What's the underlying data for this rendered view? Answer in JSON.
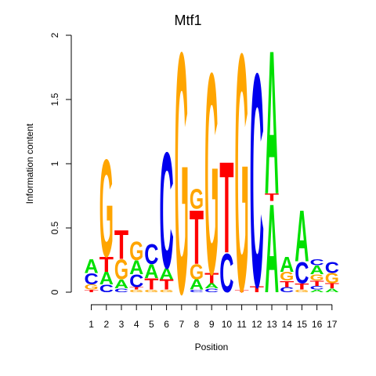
{
  "chart_data": {
    "type": "sequence-logo",
    "title": "Mtf1",
    "xlabel": "Position",
    "ylabel": "Information content",
    "ylim": [
      0,
      2
    ],
    "yticks": [
      "0",
      "0.5",
      "1",
      "1.5",
      "2"
    ],
    "positions": [
      "1",
      "2",
      "3",
      "4",
      "5",
      "6",
      "7",
      "8",
      "9",
      "10",
      "11",
      "12",
      "13",
      "14",
      "15",
      "16",
      "17"
    ],
    "colors": {
      "A": "#00e000",
      "C": "#0000ee",
      "G": "#ffa500",
      "T": "#ff0000"
    },
    "stacks": [
      [
        [
          "T",
          0.02
        ],
        [
          "G",
          0.04
        ],
        [
          "C",
          0.09
        ],
        [
          "A",
          0.11
        ]
      ],
      [
        [
          "C",
          0.06
        ],
        [
          "A",
          0.1
        ],
        [
          "T",
          0.12
        ],
        [
          "G",
          0.78
        ]
      ],
      [
        [
          "C",
          0.03
        ],
        [
          "A",
          0.07
        ],
        [
          "G",
          0.16
        ],
        [
          "T",
          0.23
        ]
      ],
      [
        [
          "G",
          0.02
        ],
        [
          "T",
          0.02
        ],
        [
          "C",
          0.1
        ],
        [
          "A",
          0.11
        ],
        [
          "G",
          0.15
        ]
      ],
      [
        [
          "G",
          0.02
        ],
        [
          "T",
          0.09
        ],
        [
          "A",
          0.11
        ],
        [
          "C",
          0.16
        ]
      ],
      [
        [
          "G",
          0.02
        ],
        [
          "T",
          0.08
        ],
        [
          "A",
          0.09
        ],
        [
          "C",
          0.93
        ]
      ],
      [
        [
          "G",
          1.93
        ]
      ],
      [
        [
          "C",
          0.02
        ],
        [
          "A",
          0.08
        ],
        [
          "G",
          0.12
        ],
        [
          "T",
          0.43
        ],
        [
          "G",
          0.16
        ]
      ],
      [
        [
          "C",
          0.03
        ],
        [
          "A",
          0.04
        ],
        [
          "T",
          0.08
        ],
        [
          "G",
          1.61
        ]
      ],
      [
        [
          "C",
          0.31
        ],
        [
          "T",
          0.73
        ]
      ],
      [
        [
          "T",
          0.02
        ],
        [
          "G",
          1.9
        ]
      ],
      [
        [
          "T",
          0.05
        ],
        [
          "C",
          1.71
        ]
      ],
      [
        [
          "A",
          0.71
        ],
        [
          "T",
          0.06
        ],
        [
          "A",
          1.15
        ]
      ],
      [
        [
          "C",
          0.04
        ],
        [
          "T",
          0.05
        ],
        [
          "G",
          0.07
        ],
        [
          "A",
          0.12
        ]
      ],
      [
        [
          "G",
          0.02
        ],
        [
          "T",
          0.05
        ],
        [
          "C",
          0.17
        ],
        [
          "A",
          0.41
        ]
      ],
      [
        [
          "A",
          0.02
        ],
        [
          "C",
          0.03
        ],
        [
          "T",
          0.04
        ],
        [
          "G",
          0.05
        ],
        [
          "A",
          0.07
        ],
        [
          "C",
          0.05
        ]
      ],
      [
        [
          "A",
          0.03
        ],
        [
          "T",
          0.04
        ],
        [
          "G",
          0.08
        ],
        [
          "C",
          0.09
        ]
      ]
    ]
  }
}
